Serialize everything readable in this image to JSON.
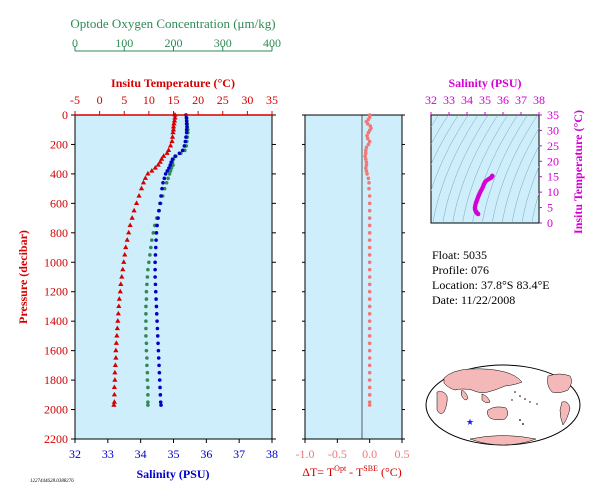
{
  "colors": {
    "oxygen": "#2e8b57",
    "temperature": "#d40000",
    "salinity": "#0000c8",
    "delta": "#f07878",
    "ts": "#d400d4",
    "panel_bg": "#cdeefa",
    "text": "#000000"
  },
  "chart_data": [
    {
      "type": "scatter",
      "name": "profile",
      "ylabel": "Pressure (decibar)",
      "y_ticks": [
        0,
        200,
        400,
        600,
        800,
        1000,
        1200,
        1400,
        1600,
        1800,
        2000,
        2200
      ],
      "ylim": [
        0,
        2200
      ],
      "y_inverted": true,
      "axes": {
        "oxygen": {
          "label": "Optode Oxygen Concentration (μm/kg)",
          "range": [
            0,
            400
          ],
          "ticks": [
            0,
            100,
            200,
            300,
            400
          ],
          "color": "oxygen"
        },
        "temperature": {
          "label": "Insitu Temperature (°C)",
          "range": [
            -5,
            35
          ],
          "ticks": [
            -5,
            0,
            5,
            10,
            15,
            20,
            25,
            30,
            35
          ],
          "color": "temperature"
        },
        "salinity": {
          "label": "Salinity (PSU)",
          "range": [
            32,
            38
          ],
          "ticks": [
            32,
            33,
            34,
            35,
            36,
            37,
            38
          ],
          "color": "salinity"
        }
      },
      "series": [
        {
          "axis": "temperature",
          "marker": "triangle",
          "points": [
            [
              15.3,
              0
            ],
            [
              15.3,
              20
            ],
            [
              15.2,
              40
            ],
            [
              15.1,
              60
            ],
            [
              15.0,
              80
            ],
            [
              15.0,
              100
            ],
            [
              14.9,
              120
            ],
            [
              14.8,
              150
            ],
            [
              14.7,
              180
            ],
            [
              14.4,
              210
            ],
            [
              14.0,
              240
            ],
            [
              13.7,
              260
            ],
            [
              13.0,
              280
            ],
            [
              12.6,
              300
            ],
            [
              12.3,
              320
            ],
            [
              11.9,
              340
            ],
            [
              11.3,
              360
            ],
            [
              10.6,
              380
            ],
            [
              9.8,
              400
            ],
            [
              9.3,
              430
            ],
            [
              8.9,
              460
            ],
            [
              8.5,
              500
            ],
            [
              8.0,
              550
            ],
            [
              7.5,
              600
            ],
            [
              7.0,
              650
            ],
            [
              6.6,
              700
            ],
            [
              6.2,
              750
            ],
            [
              5.9,
              800
            ],
            [
              5.6,
              850
            ],
            [
              5.3,
              900
            ],
            [
              5.1,
              950
            ],
            [
              4.9,
              1000
            ],
            [
              4.7,
              1050
            ],
            [
              4.5,
              1100
            ],
            [
              4.3,
              1150
            ],
            [
              4.2,
              1200
            ],
            [
              4.0,
              1250
            ],
            [
              3.9,
              1300
            ],
            [
              3.8,
              1350
            ],
            [
              3.7,
              1400
            ],
            [
              3.6,
              1450
            ],
            [
              3.5,
              1500
            ],
            [
              3.4,
              1550
            ],
            [
              3.3,
              1600
            ],
            [
              3.3,
              1650
            ],
            [
              3.2,
              1700
            ],
            [
              3.1,
              1750
            ],
            [
              3.1,
              1800
            ],
            [
              3.0,
              1850
            ],
            [
              3.0,
              1900
            ],
            [
              3.0,
              1950
            ],
            [
              2.9,
              1970
            ]
          ]
        },
        {
          "axis": "oxygen",
          "marker": "circle",
          "points": [
            [
              225,
              0
            ],
            [
              226,
              20
            ],
            [
              227,
              40
            ],
            [
              228,
              60
            ],
            [
              228,
              80
            ],
            [
              229,
              100
            ],
            [
              229,
              120
            ],
            [
              228,
              150
            ],
            [
              227,
              180
            ],
            [
              226,
              210
            ],
            [
              223,
              240
            ],
            [
              215,
              260
            ],
            [
              205,
              280
            ],
            [
              200,
              300
            ],
            [
              198,
              320
            ],
            [
              199,
              340
            ],
            [
              196,
              360
            ],
            [
              194,
              380
            ],
            [
              192,
              400
            ],
            [
              189,
              430
            ],
            [
              186,
              460
            ],
            [
              182,
              500
            ],
            [
              178,
              550
            ],
            [
              174,
              600
            ],
            [
              170,
              650
            ],
            [
              166,
              700
            ],
            [
              162,
              750
            ],
            [
              159,
              800
            ],
            [
              156,
              850
            ],
            [
              154,
              900
            ],
            [
              152,
              950
            ],
            [
              150,
              1000
            ],
            [
              148,
              1050
            ],
            [
              147,
              1100
            ],
            [
              146,
              1150
            ],
            [
              145,
              1200
            ],
            [
              145,
              1250
            ],
            [
              144,
              1300
            ],
            [
              144,
              1350
            ],
            [
              144,
              1400
            ],
            [
              144,
              1450
            ],
            [
              144,
              1500
            ],
            [
              145,
              1550
            ],
            [
              145,
              1600
            ],
            [
              146,
              1650
            ],
            [
              146,
              1700
            ],
            [
              147,
              1750
            ],
            [
              147,
              1800
            ],
            [
              148,
              1850
            ],
            [
              148,
              1900
            ],
            [
              148,
              1950
            ],
            [
              148,
              1970
            ]
          ]
        },
        {
          "axis": "salinity",
          "marker": "circle",
          "points": [
            [
              35.38,
              0
            ],
            [
              35.4,
              20
            ],
            [
              35.4,
              40
            ],
            [
              35.4,
              60
            ],
            [
              35.41,
              80
            ],
            [
              35.4,
              100
            ],
            [
              35.4,
              120
            ],
            [
              35.38,
              150
            ],
            [
              35.36,
              180
            ],
            [
              35.33,
              210
            ],
            [
              35.28,
              240
            ],
            [
              35.18,
              260
            ],
            [
              35.05,
              280
            ],
            [
              34.97,
              300
            ],
            [
              34.93,
              320
            ],
            [
              34.9,
              340
            ],
            [
              34.86,
              360
            ],
            [
              34.81,
              380
            ],
            [
              34.76,
              400
            ],
            [
              34.72,
              430
            ],
            [
              34.68,
              460
            ],
            [
              34.65,
              500
            ],
            [
              34.62,
              550
            ],
            [
              34.59,
              600
            ],
            [
              34.56,
              650
            ],
            [
              34.53,
              700
            ],
            [
              34.5,
              750
            ],
            [
              34.48,
              800
            ],
            [
              34.47,
              850
            ],
            [
              34.46,
              900
            ],
            [
              34.45,
              950
            ],
            [
              34.44,
              1000
            ],
            [
              34.44,
              1050
            ],
            [
              34.44,
              1100
            ],
            [
              34.45,
              1150
            ],
            [
              34.46,
              1200
            ],
            [
              34.47,
              1250
            ],
            [
              34.48,
              1300
            ],
            [
              34.49,
              1350
            ],
            [
              34.5,
              1400
            ],
            [
              34.51,
              1450
            ],
            [
              34.52,
              1500
            ],
            [
              34.53,
              1550
            ],
            [
              34.54,
              1600
            ],
            [
              34.55,
              1650
            ],
            [
              34.56,
              1700
            ],
            [
              34.57,
              1750
            ],
            [
              34.58,
              1800
            ],
            [
              34.59,
              1850
            ],
            [
              34.6,
              1900
            ],
            [
              34.61,
              1950
            ],
            [
              34.62,
              1970
            ]
          ]
        }
      ]
    },
    {
      "type": "scatter",
      "name": "delta_t",
      "xlabel_main": "ΔT= T",
      "xlabel_sup1": "Opt",
      "xlabel_mid": " - T",
      "xlabel_sup2": "SBE",
      "xlabel_tail": " (°C)",
      "x_ticks": [
        "-1.0",
        "-0.5",
        "0.0",
        "0.5"
      ],
      "xlim": [
        -1.0,
        0.5
      ],
      "ylim": [
        0,
        2200
      ],
      "marker": "circle",
      "points": [
        [
          0.0,
          0
        ],
        [
          0.0,
          15
        ],
        [
          -0.02,
          30
        ],
        [
          -0.05,
          45
        ],
        [
          -0.03,
          60
        ],
        [
          0.01,
          75
        ],
        [
          0.02,
          90
        ],
        [
          0.0,
          105
        ],
        [
          -0.02,
          120
        ],
        [
          -0.04,
          140
        ],
        [
          -0.03,
          160
        ],
        [
          0.0,
          180
        ],
        [
          -0.02,
          200
        ],
        [
          -0.05,
          220
        ],
        [
          -0.06,
          240
        ],
        [
          -0.06,
          260
        ],
        [
          -0.07,
          280
        ],
        [
          -0.06,
          300
        ],
        [
          -0.05,
          320
        ],
        [
          -0.05,
          340
        ],
        [
          -0.06,
          360
        ],
        [
          -0.05,
          380
        ],
        [
          -0.04,
          400
        ],
        [
          -0.02,
          430
        ],
        [
          -0.01,
          460
        ],
        [
          -0.01,
          500
        ],
        [
          0.0,
          550
        ],
        [
          0.0,
          600
        ],
        [
          0.0,
          650
        ],
        [
          0.0,
          700
        ],
        [
          0.0,
          750
        ],
        [
          0.0,
          800
        ],
        [
          0.0,
          850
        ],
        [
          0.0,
          900
        ],
        [
          0.0,
          950
        ],
        [
          0.0,
          1000
        ],
        [
          0.0,
          1050
        ],
        [
          0.0,
          1100
        ],
        [
          0.0,
          1150
        ],
        [
          0.0,
          1200
        ],
        [
          0.0,
          1250
        ],
        [
          0.0,
          1300
        ],
        [
          0.0,
          1350
        ],
        [
          0.0,
          1400
        ],
        [
          0.0,
          1450
        ],
        [
          0.0,
          1500
        ],
        [
          0.0,
          1550
        ],
        [
          0.0,
          1600
        ],
        [
          0.0,
          1650
        ],
        [
          0.0,
          1700
        ],
        [
          0.0,
          1750
        ],
        [
          0.0,
          1800
        ],
        [
          0.0,
          1850
        ],
        [
          0.0,
          1900
        ],
        [
          0.0,
          1950
        ],
        [
          0.0,
          1970
        ]
      ]
    },
    {
      "type": "scatter",
      "name": "ts_diagram",
      "xlabel": "Salinity (PSU)",
      "ylabel": "Insitu Temperature (°C)",
      "x_ticks": [
        32,
        33,
        34,
        35,
        36,
        37,
        38
      ],
      "y_ticks": [
        0,
        5,
        10,
        15,
        20,
        25,
        30,
        35
      ],
      "xlim": [
        32,
        38
      ],
      "ylim": [
        0,
        35
      ],
      "marker": "circle",
      "density_contours": true,
      "points": [
        [
          34.62,
          2.9
        ],
        [
          34.6,
          3.0
        ],
        [
          34.58,
          3.1
        ],
        [
          34.56,
          3.2
        ],
        [
          34.54,
          3.3
        ],
        [
          34.52,
          3.5
        ],
        [
          34.5,
          3.7
        ],
        [
          34.48,
          3.9
        ],
        [
          34.46,
          4.2
        ],
        [
          34.45,
          4.5
        ],
        [
          34.44,
          4.9
        ],
        [
          34.45,
          5.3
        ],
        [
          34.47,
          5.9
        ],
        [
          34.5,
          6.6
        ],
        [
          34.53,
          7.0
        ],
        [
          34.56,
          7.5
        ],
        [
          34.59,
          8.0
        ],
        [
          34.62,
          8.5
        ],
        [
          34.65,
          8.9
        ],
        [
          34.68,
          9.3
        ],
        [
          34.72,
          9.8
        ],
        [
          34.76,
          10.3
        ],
        [
          34.81,
          10.8
        ],
        [
          34.86,
          11.4
        ],
        [
          34.9,
          11.9
        ],
        [
          34.93,
          12.4
        ],
        [
          34.97,
          12.9
        ],
        [
          35.02,
          13.4
        ],
        [
          35.1,
          13.8
        ],
        [
          35.2,
          14.2
        ],
        [
          35.28,
          14.5
        ],
        [
          35.33,
          14.7
        ],
        [
          35.37,
          14.9
        ],
        [
          35.4,
          15.1
        ],
        [
          35.41,
          15.2
        ],
        [
          35.4,
          15.3
        ]
      ]
    }
  ],
  "info": {
    "float": "Float:  5035",
    "profile": "Profile:  076",
    "location": "Location:  37.8°S  83.4°E",
    "date": "Date:  11/22/2008"
  },
  "map": {
    "marker": "★"
  },
  "footer_id": "1227444628.0388276"
}
